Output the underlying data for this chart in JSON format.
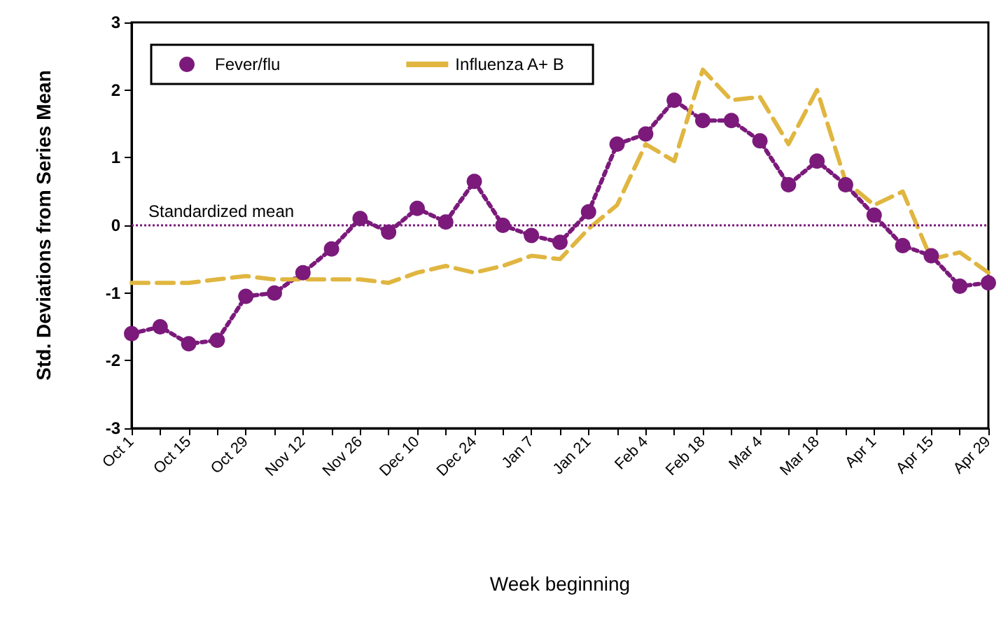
{
  "chart_data": {
    "type": "line",
    "xlabel": "Week beginning",
    "ylabel": "Std. Deviations from Series Mean",
    "categories": [
      "Oct 1",
      null,
      "Oct 15",
      null,
      "Oct 29",
      null,
      "Nov 12",
      null,
      "Nov 26",
      null,
      "Dec 10",
      null,
      "Dec 24",
      null,
      "Jan 7",
      null,
      "Jan 21",
      null,
      "Feb 4",
      null,
      "Feb 18",
      null,
      "Mar 4",
      null,
      "Mar 18",
      null,
      "Apr 1",
      null,
      "Apr 15",
      null,
      "Apr 29"
    ],
    "series": [
      {
        "name": "Fever/flu",
        "color": "#7b1a7b",
        "marker": "circle",
        "line_style": "dotted",
        "values": [
          -1.6,
          -1.5,
          -1.75,
          -1.7,
          -1.05,
          -1.0,
          -0.7,
          -0.35,
          0.1,
          -0.1,
          0.25,
          0.05,
          0.65,
          0.0,
          -0.15,
          -0.25,
          0.2,
          1.2,
          1.35,
          1.85,
          1.55,
          1.55,
          1.25,
          0.6,
          0.95,
          0.6,
          0.15,
          -0.3,
          -0.45,
          -0.9,
          -0.85
        ]
      },
      {
        "name": "Influenza A+ B",
        "color": "#e0b640",
        "marker": "none",
        "line_style": "dashed",
        "values": [
          -0.85,
          -0.85,
          -0.85,
          -0.8,
          -0.75,
          -0.8,
          -0.8,
          -0.8,
          -0.8,
          -0.85,
          -0.7,
          -0.6,
          -0.7,
          -0.6,
          -0.45,
          -0.5,
          -0.05,
          0.3,
          1.2,
          0.95,
          2.3,
          1.85,
          1.9,
          1.2,
          2.0,
          0.65,
          0.3,
          0.5,
          -0.5,
          -0.4,
          -0.7
        ]
      }
    ],
    "ylim": [
      -3,
      3
    ],
    "yticks": [
      -3,
      -2,
      -1,
      0,
      1,
      2,
      3
    ],
    "grid": false,
    "legend": "top left",
    "ref_lines": [
      {
        "axis": "y",
        "value": 0,
        "label": "Standardized mean",
        "color": "#7b1a7b",
        "line_style": "dotted"
      }
    ]
  }
}
